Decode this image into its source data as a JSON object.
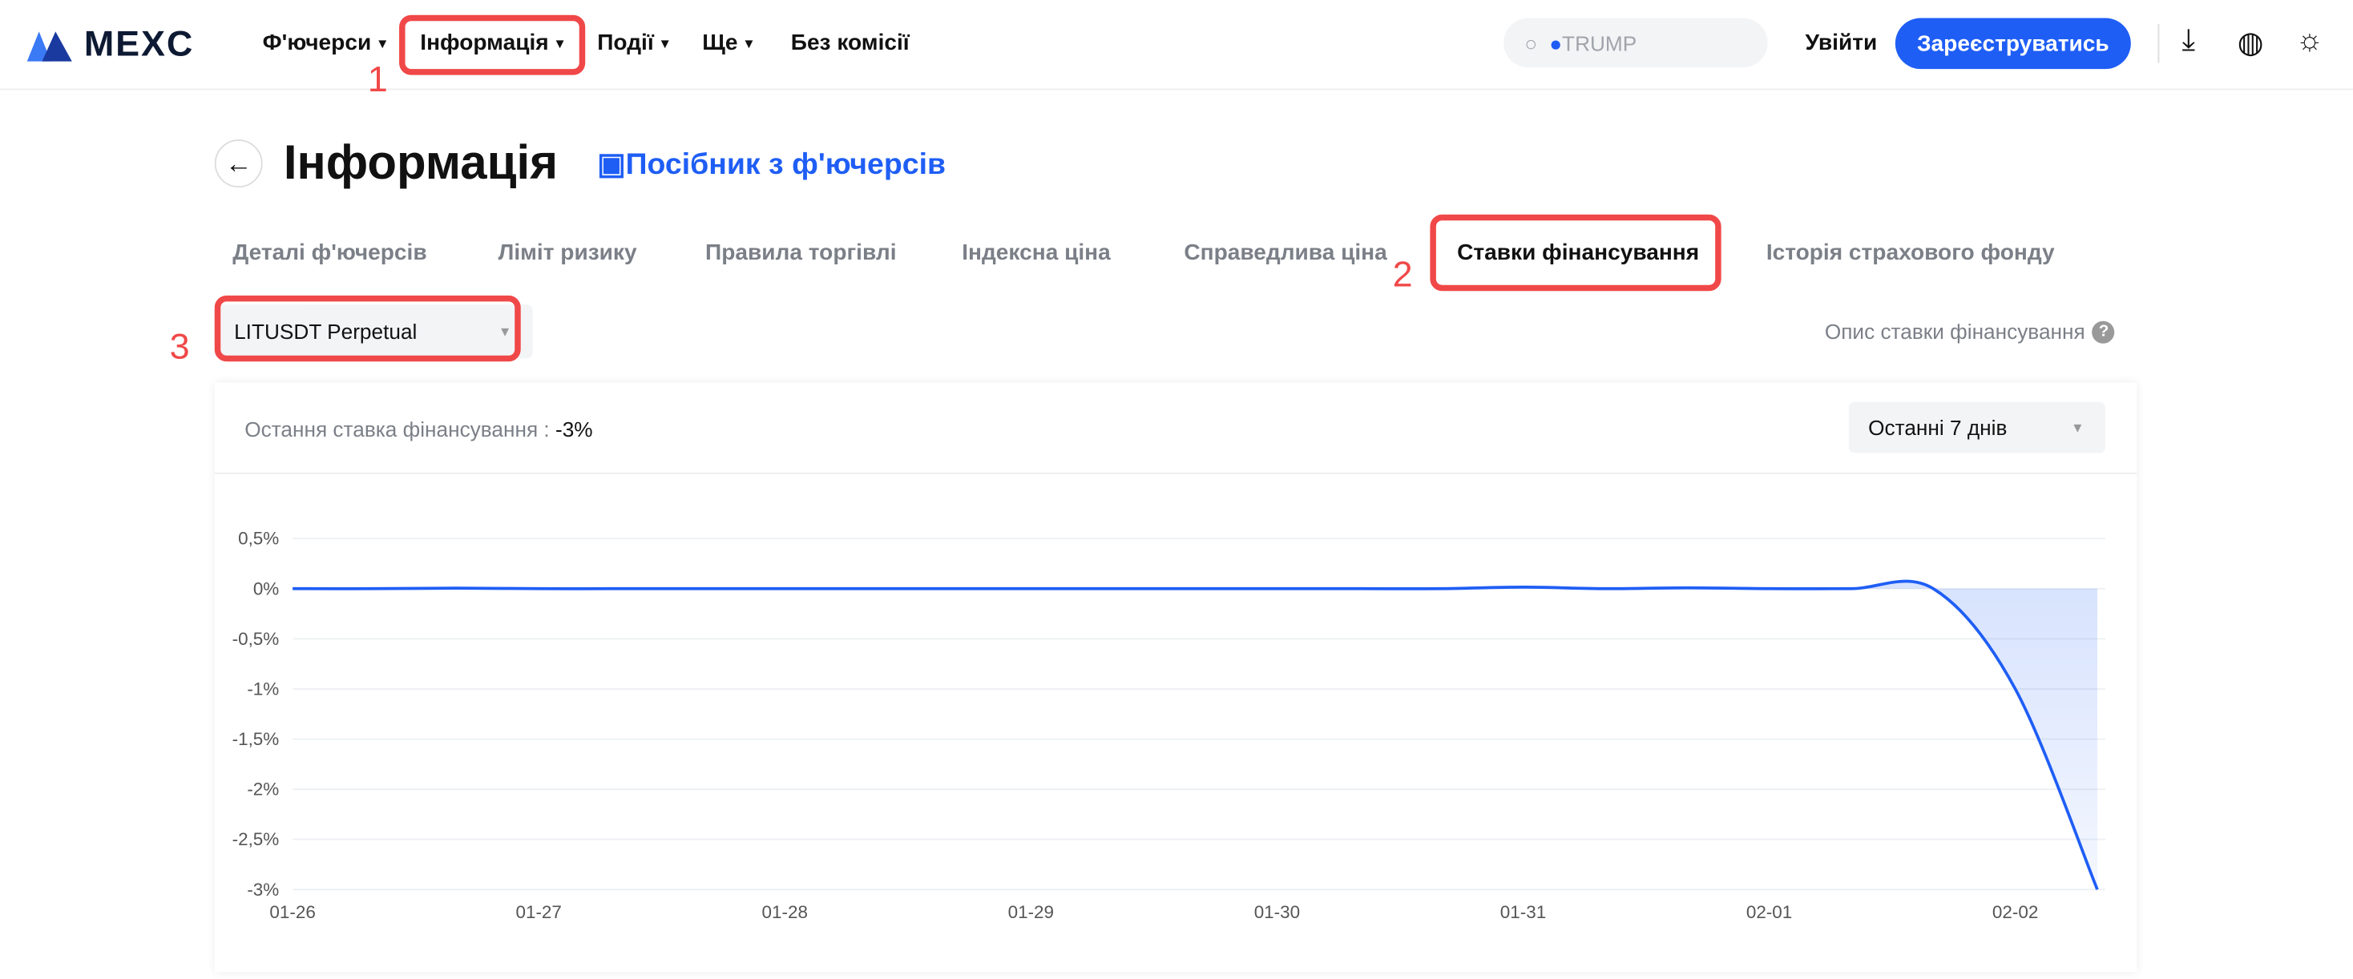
{
  "nav": {
    "logo": "MEXC",
    "items": [
      {
        "label": "Ф'ючерси",
        "caret": true
      },
      {
        "label": "Інформація",
        "caret": true
      },
      {
        "label": "Події",
        "caret": true
      },
      {
        "label": "Ще",
        "caret": true
      },
      {
        "label": "Без комісії",
        "caret": false
      }
    ],
    "search_placeholder": "TRUMP",
    "login": "Увійти",
    "register": "Зареєструватись",
    "icons": [
      "download-icon",
      "globe-icon",
      "sun-icon"
    ]
  },
  "annotations": [
    "1",
    "2",
    "3"
  ],
  "page": {
    "title": "Інформація",
    "guide": "Посібник з ф'ючерсів",
    "tabs": [
      "Деталі ф'ючерсів",
      "Ліміт ризику",
      "Правила торгівлі",
      "Індексна ціна",
      "Справедлива ціна",
      "Ставки фінансування",
      "Історія страхового фонду"
    ],
    "active_tab": 5,
    "contract": "LITUSDT Perpetual",
    "rate_desc": "Опис ставки фінансування",
    "last_label": "Остання ставка фінансування :",
    "last_value": "-3%",
    "range": "Останні 7 днів"
  },
  "colors": {
    "accent": "#1f5ef5",
    "annotation": "#f04848"
  },
  "chart_data": {
    "type": "area",
    "ylim": [
      -3,
      0.5
    ],
    "yticks": [
      "0,5%",
      "0%",
      "-0,5%",
      "-1%",
      "-1,5%",
      "-2%",
      "-2,5%",
      "-3%"
    ],
    "ytick_values": [
      0.5,
      0,
      -0.5,
      -1,
      -1.5,
      -2,
      -2.5,
      -3
    ],
    "xticks": [
      "01-26",
      "01-27",
      "01-28",
      "01-29",
      "01-30",
      "01-31",
      "02-01",
      "02-02"
    ],
    "grid": true,
    "x_step_hours": 8,
    "values": [
      0,
      0,
      0.005,
      0,
      0,
      0,
      0,
      0,
      0,
      0,
      0,
      0,
      0,
      0,
      0,
      0.015,
      0,
      0.008,
      0,
      0,
      0,
      -1,
      -3
    ]
  }
}
